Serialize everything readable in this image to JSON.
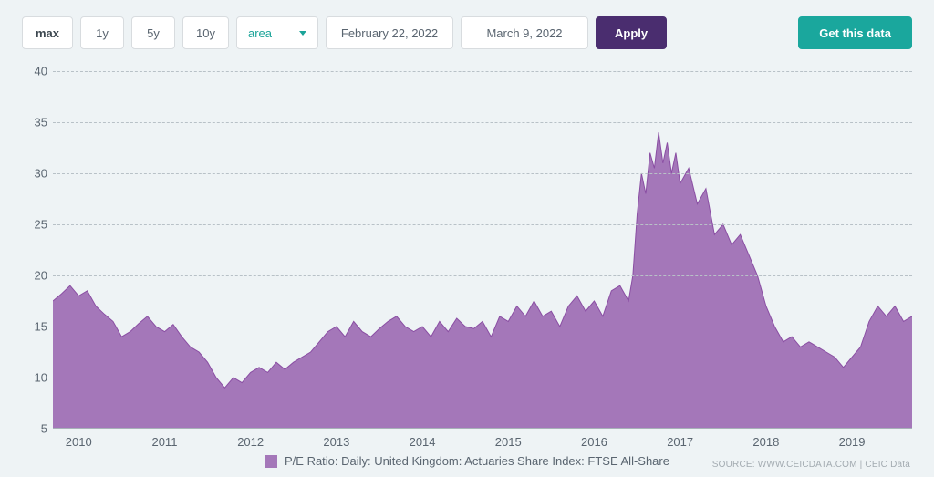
{
  "toolbar": {
    "ranges": [
      {
        "label": "max",
        "active": true
      },
      {
        "label": "1y",
        "active": false
      },
      {
        "label": "5y",
        "active": false
      },
      {
        "label": "10y",
        "active": false
      }
    ],
    "chart_type": "area",
    "date_from": "February 22, 2022",
    "date_to": "March 9, 2022",
    "apply_label": "Apply",
    "get_data_label": "Get this data"
  },
  "chart": {
    "type": "area",
    "series_label": "P/E Ratio: Daily: United Kingdom: Actuaries Share Index: FTSE All-Share",
    "fill_color": "#a477b9",
    "line_color": "#8a4ea3",
    "line_width": 1,
    "background_color": "#eef3f5",
    "grid_color": "#b8c1c7",
    "grid_dash": "3,4",
    "axis_label_color": "#5a6570",
    "axis_label_fontsize": 13,
    "ylim": [
      5,
      40
    ],
    "yticks": [
      5,
      10,
      15,
      20,
      25,
      30,
      35,
      40
    ],
    "xticks": [
      "2010",
      "2011",
      "2012",
      "2013",
      "2014",
      "2015",
      "2016",
      "2017",
      "2018",
      "2019"
    ],
    "x_range_years": [
      2009.7,
      2019.7
    ],
    "data": [
      [
        2009.7,
        17.5
      ],
      [
        2009.8,
        18.2
      ],
      [
        2009.9,
        19.0
      ],
      [
        2010.0,
        18.0
      ],
      [
        2010.1,
        18.5
      ],
      [
        2010.2,
        17.0
      ],
      [
        2010.3,
        16.2
      ],
      [
        2010.4,
        15.5
      ],
      [
        2010.5,
        14.0
      ],
      [
        2010.6,
        14.5
      ],
      [
        2010.7,
        15.3
      ],
      [
        2010.8,
        16.0
      ],
      [
        2010.9,
        15.0
      ],
      [
        2011.0,
        14.5
      ],
      [
        2011.1,
        15.2
      ],
      [
        2011.2,
        14.0
      ],
      [
        2011.3,
        13.0
      ],
      [
        2011.4,
        12.5
      ],
      [
        2011.5,
        11.5
      ],
      [
        2011.6,
        10.0
      ],
      [
        2011.7,
        9.0
      ],
      [
        2011.8,
        10.0
      ],
      [
        2011.9,
        9.5
      ],
      [
        2012.0,
        10.5
      ],
      [
        2012.1,
        11.0
      ],
      [
        2012.2,
        10.5
      ],
      [
        2012.3,
        11.5
      ],
      [
        2012.4,
        10.8
      ],
      [
        2012.5,
        11.5
      ],
      [
        2012.6,
        12.0
      ],
      [
        2012.7,
        12.5
      ],
      [
        2012.8,
        13.5
      ],
      [
        2012.9,
        14.5
      ],
      [
        2013.0,
        15.0
      ],
      [
        2013.1,
        14.0
      ],
      [
        2013.2,
        15.5
      ],
      [
        2013.3,
        14.5
      ],
      [
        2013.4,
        14.0
      ],
      [
        2013.5,
        14.8
      ],
      [
        2013.6,
        15.5
      ],
      [
        2013.7,
        16.0
      ],
      [
        2013.8,
        15.0
      ],
      [
        2013.9,
        14.5
      ],
      [
        2014.0,
        15.0
      ],
      [
        2014.1,
        14.0
      ],
      [
        2014.2,
        15.5
      ],
      [
        2014.3,
        14.5
      ],
      [
        2014.4,
        15.8
      ],
      [
        2014.5,
        15.0
      ],
      [
        2014.6,
        14.8
      ],
      [
        2014.7,
        15.5
      ],
      [
        2014.8,
        14.0
      ],
      [
        2014.9,
        16.0
      ],
      [
        2015.0,
        15.5
      ],
      [
        2015.1,
        17.0
      ],
      [
        2015.2,
        16.0
      ],
      [
        2015.3,
        17.5
      ],
      [
        2015.4,
        16.0
      ],
      [
        2015.5,
        16.5
      ],
      [
        2015.6,
        15.0
      ],
      [
        2015.7,
        17.0
      ],
      [
        2015.8,
        18.0
      ],
      [
        2015.9,
        16.5
      ],
      [
        2016.0,
        17.5
      ],
      [
        2016.1,
        16.0
      ],
      [
        2016.2,
        18.5
      ],
      [
        2016.3,
        19.0
      ],
      [
        2016.4,
        17.5
      ],
      [
        2016.45,
        20.0
      ],
      [
        2016.5,
        26.0
      ],
      [
        2016.55,
        30.0
      ],
      [
        2016.6,
        28.0
      ],
      [
        2016.65,
        32.0
      ],
      [
        2016.7,
        30.5
      ],
      [
        2016.75,
        34.0
      ],
      [
        2016.8,
        31.0
      ],
      [
        2016.85,
        33.0
      ],
      [
        2016.9,
        30.0
      ],
      [
        2016.95,
        32.0
      ],
      [
        2017.0,
        29.0
      ],
      [
        2017.1,
        30.5
      ],
      [
        2017.2,
        27.0
      ],
      [
        2017.3,
        28.5
      ],
      [
        2017.4,
        24.0
      ],
      [
        2017.5,
        25.0
      ],
      [
        2017.6,
        23.0
      ],
      [
        2017.7,
        24.0
      ],
      [
        2017.8,
        22.0
      ],
      [
        2017.9,
        20.0
      ],
      [
        2018.0,
        17.0
      ],
      [
        2018.1,
        15.0
      ],
      [
        2018.2,
        13.5
      ],
      [
        2018.3,
        14.0
      ],
      [
        2018.4,
        13.0
      ],
      [
        2018.5,
        13.5
      ],
      [
        2018.6,
        13.0
      ],
      [
        2018.7,
        12.5
      ],
      [
        2018.8,
        12.0
      ],
      [
        2018.9,
        11.0
      ],
      [
        2019.0,
        12.0
      ],
      [
        2019.1,
        13.0
      ],
      [
        2019.2,
        15.5
      ],
      [
        2019.3,
        17.0
      ],
      [
        2019.4,
        16.0
      ],
      [
        2019.5,
        17.0
      ],
      [
        2019.6,
        15.5
      ],
      [
        2019.7,
        16.0
      ]
    ]
  },
  "source_text": "SOURCE: WWW.CEICDATA.COM | CEIC Data"
}
